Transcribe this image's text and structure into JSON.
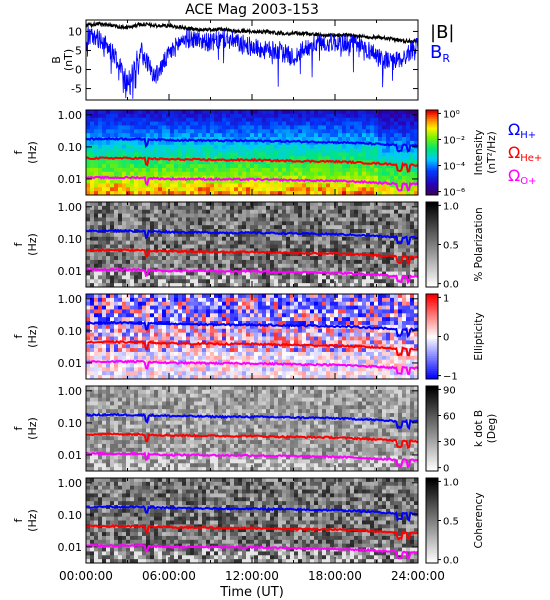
{
  "chart_data": {
    "title": "ACE Mag 2003-153",
    "type": "line",
    "time_axis": {
      "label": "Time (UT)",
      "ticks": [
        "00:00:00",
        "06:00:00",
        "12:00:00",
        "18:00:00",
        "24:00:00"
      ],
      "range_hours": [
        0,
        24
      ]
    },
    "panels": [
      {
        "id": "mag",
        "type": "line",
        "ylabel": "B\n(nT)",
        "yticks": [
          "10",
          "5",
          "0",
          "-5"
        ],
        "ylim": [
          -8,
          13
        ],
        "legend": [
          {
            "name": "|B|",
            "color": "#000000"
          },
          {
            "name": "B_R",
            "label_main": "B",
            "label_sub": "R",
            "color": "#0000ff"
          }
        ],
        "series": [
          {
            "name": "|B|",
            "color": "#000000",
            "x": [
              0,
              1,
              2,
              3,
              4,
              5,
              6,
              7,
              8,
              9,
              10,
              11,
              12,
              13,
              14,
              15,
              16,
              17,
              18,
              19,
              20,
              21,
              22,
              23,
              24
            ],
            "values": [
              11.5,
              12,
              11.5,
              11,
              12,
              11.5,
              11.5,
              11,
              10.5,
              10.5,
              10.5,
              10,
              10,
              10,
              9.5,
              9.5,
              9.5,
              9,
              9,
              9,
              8.5,
              8.5,
              8,
              7.5,
              7.5
            ]
          },
          {
            "name": "B_R",
            "color": "#0000ff",
            "x": [
              0,
              1,
              2,
              3,
              4,
              5,
              6,
              7,
              8,
              9,
              10,
              11,
              12,
              13,
              14,
              15,
              16,
              17,
              18,
              19,
              20,
              21,
              22,
              23,
              24
            ],
            "values": [
              9,
              8,
              4,
              -3,
              5,
              -2,
              4,
              8,
              8,
              7,
              8,
              7,
              6,
              5,
              5,
              3,
              6,
              7,
              7,
              7,
              6,
              4,
              2,
              3,
              7
            ]
          }
        ]
      },
      {
        "id": "intensity",
        "type": "heatmap",
        "ylabel": "f\n(Hz)",
        "yticks": [
          "1.00",
          "0.10",
          "0.01"
        ],
        "colorbar": {
          "label": "Intensity\n(nT²/Hz)",
          "ticks": [
            "10⁰",
            "10⁻²",
            "10⁻⁴",
            "10⁻⁶"
          ],
          "scheme": "rainbow"
        }
      },
      {
        "id": "polarization",
        "type": "heatmap",
        "ylabel": "f\n(Hz)",
        "yticks": [
          "1.00",
          "0.10",
          "0.01"
        ],
        "colorbar": {
          "label": "% Polarization",
          "ticks": [
            "1.0",
            "0.5",
            "0.0"
          ],
          "scheme": "gray"
        }
      },
      {
        "id": "ellipticity",
        "type": "heatmap",
        "ylabel": "f\n(Hz)",
        "yticks": [
          "1.00",
          "0.10",
          "0.01"
        ],
        "colorbar": {
          "label": "Ellipticity",
          "ticks": [
            "1",
            "0",
            "−1"
          ],
          "scheme": "bwr"
        }
      },
      {
        "id": "kdotb",
        "type": "heatmap",
        "ylabel": "f\n(Hz)",
        "yticks": [
          "1.00",
          "0.10",
          "0.01"
        ],
        "colorbar": {
          "label": "k dot B\n(Deg)",
          "ticks": [
            "90",
            "60",
            "30",
            "0"
          ],
          "scheme": "gray"
        }
      },
      {
        "id": "coherency",
        "type": "heatmap",
        "ylabel": "f\n(Hz)",
        "yticks": [
          "1.00",
          "0.10",
          "0.01"
        ],
        "colorbar": {
          "label": "Coherency",
          "ticks": [
            "1.0",
            "0.5",
            "0.0"
          ],
          "scheme": "gray"
        }
      }
    ],
    "gyro_lines": {
      "legend": [
        {
          "name": "ΩH+",
          "label_main": "Ω",
          "label_sub": "H+",
          "color": "#0000ff"
        },
        {
          "name": "ΩHe+",
          "label_main": "Ω",
          "label_sub": "He+",
          "color": "#ff0000"
        },
        {
          "name": "ΩO+",
          "label_main": "Ω",
          "label_sub": "O+",
          "color": "#ff00ff"
        }
      ],
      "x": [
        0,
        2,
        4,
        6,
        8,
        10,
        12,
        14,
        16,
        18,
        20,
        22,
        24
      ],
      "series": [
        {
          "name": "ΩH+",
          "color": "#0000ff",
          "values": [
            0.175,
            0.18,
            0.175,
            0.165,
            0.16,
            0.155,
            0.155,
            0.15,
            0.145,
            0.14,
            0.13,
            0.115,
            0.11
          ]
        },
        {
          "name": "ΩHe+",
          "color": "#ff0000",
          "values": [
            0.044,
            0.045,
            0.044,
            0.041,
            0.04,
            0.039,
            0.039,
            0.037,
            0.036,
            0.035,
            0.032,
            0.029,
            0.027
          ]
        },
        {
          "name": "ΩO+",
          "color": "#ff00ff",
          "values": [
            0.011,
            0.011,
            0.011,
            0.01,
            0.01,
            0.0097,
            0.0097,
            0.0093,
            0.009,
            0.0087,
            0.0081,
            0.0072,
            0.0069
          ]
        }
      ]
    }
  }
}
